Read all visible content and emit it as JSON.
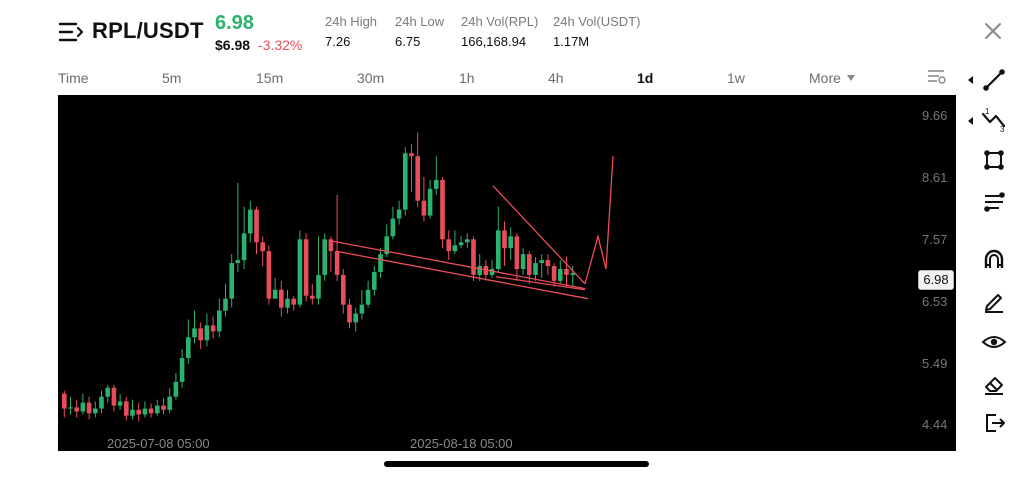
{
  "header": {
    "pair": "RPL/USDT",
    "price": "6.98",
    "price_usd": "$6.98",
    "change": "-3.32%",
    "stats": [
      {
        "label": "24h High",
        "value": "7.26"
      },
      {
        "label": "24h Low",
        "value": "6.75"
      },
      {
        "label": "24h Vol(RPL)",
        "value": "166,168.94"
      },
      {
        "label": "24h Vol(USDT)",
        "value": "1.17M"
      }
    ],
    "icons": {
      "menu": "menu-icon",
      "close": "close-icon"
    }
  },
  "timeframes": {
    "items": [
      "Time",
      "5m",
      "15m",
      "30m",
      "1h",
      "4h",
      "1d",
      "1w",
      "More"
    ],
    "active": "1d",
    "settings_icon": "indicator-settings-icon"
  },
  "chart_data": {
    "type": "candlestick",
    "symbol": "RPL/USDT",
    "interval": "1d",
    "current_price": 6.98,
    "yaxis_ticks": [
      "9.66",
      "8.61",
      "7.57",
      "6.53",
      "5.49",
      "4.44"
    ],
    "xaxis_ticks": [
      "2025-07-08 05:00",
      "2025-08-18 05:00"
    ],
    "candles": [
      [
        4.95,
        4.7,
        5.0,
        4.55
      ],
      [
        4.7,
        4.72,
        4.9,
        4.6
      ],
      [
        4.72,
        4.65,
        4.85,
        4.55
      ],
      [
        4.65,
        4.8,
        4.95,
        4.6
      ],
      [
        4.8,
        4.62,
        4.9,
        4.52
      ],
      [
        4.62,
        4.7,
        4.82,
        4.55
      ],
      [
        4.7,
        4.9,
        5.0,
        4.62
      ],
      [
        4.9,
        5.05,
        5.1,
        4.8
      ],
      [
        5.05,
        4.75,
        5.1,
        4.65
      ],
      [
        4.75,
        4.82,
        4.95,
        4.68
      ],
      [
        4.82,
        4.58,
        4.9,
        4.5
      ],
      [
        4.58,
        4.68,
        4.85,
        4.52
      ],
      [
        4.68,
        4.6,
        4.8,
        4.48
      ],
      [
        4.6,
        4.7,
        4.82,
        4.55
      ],
      [
        4.7,
        4.62,
        4.78,
        4.55
      ],
      [
        4.62,
        4.75,
        4.85,
        4.58
      ],
      [
        4.75,
        4.68,
        4.88,
        4.6
      ],
      [
        4.68,
        4.9,
        5.05,
        4.62
      ],
      [
        4.9,
        5.15,
        5.3,
        4.85
      ],
      [
        5.15,
        5.55,
        5.7,
        5.05
      ],
      [
        5.55,
        5.9,
        6.2,
        5.45
      ],
      [
        5.9,
        6.05,
        6.35,
        5.8
      ],
      [
        6.05,
        5.85,
        6.15,
        5.7
      ],
      [
        5.85,
        6.1,
        6.3,
        5.75
      ],
      [
        6.1,
        6.0,
        6.25,
        5.88
      ],
      [
        6.0,
        6.35,
        6.55,
        5.9
      ],
      [
        6.35,
        6.55,
        6.8,
        6.25
      ],
      [
        6.55,
        7.15,
        7.3,
        6.4
      ],
      [
        7.15,
        7.2,
        8.5,
        7.0
      ],
      [
        7.2,
        7.65,
        8.1,
        7.05
      ],
      [
        7.65,
        8.05,
        8.2,
        7.5
      ],
      [
        8.05,
        7.5,
        8.1,
        7.3
      ],
      [
        7.5,
        7.35,
        7.6,
        7.1
      ],
      [
        7.35,
        6.55,
        7.45,
        6.45
      ],
      [
        6.55,
        6.7,
        6.9,
        6.55
      ],
      [
        6.7,
        6.4,
        6.85,
        6.25
      ],
      [
        6.4,
        6.55,
        6.7,
        6.3
      ],
      [
        6.55,
        6.45,
        6.6,
        6.35
      ],
      [
        6.45,
        7.55,
        7.7,
        6.4
      ],
      [
        7.55,
        6.6,
        7.65,
        6.5
      ],
      [
        6.6,
        6.55,
        6.8,
        6.45
      ],
      [
        6.55,
        6.95,
        7.6,
        6.45
      ],
      [
        6.95,
        7.55,
        7.65,
        6.85
      ],
      [
        7.55,
        7.35,
        7.6,
        7.0
      ],
      [
        7.35,
        6.95,
        8.3,
        6.85
      ],
      [
        6.95,
        6.45,
        7.05,
        6.3
      ],
      [
        6.45,
        6.15,
        6.55,
        6.05
      ],
      [
        6.15,
        6.3,
        6.4,
        6.0
      ],
      [
        6.3,
        6.45,
        6.7,
        6.2
      ],
      [
        6.45,
        6.7,
        6.85,
        6.4
      ],
      [
        6.7,
        7.0,
        7.1,
        6.6
      ],
      [
        7.0,
        7.3,
        7.4,
        6.9
      ],
      [
        7.3,
        7.6,
        7.8,
        7.25
      ],
      [
        7.6,
        7.9,
        8.1,
        7.55
      ],
      [
        7.9,
        8.05,
        8.2,
        7.8
      ],
      [
        8.05,
        9.0,
        9.1,
        7.95
      ],
      [
        9.0,
        8.95,
        9.15,
        8.35
      ],
      [
        8.95,
        8.2,
        9.35,
        8.1
      ],
      [
        8.2,
        7.95,
        8.6,
        7.85
      ],
      [
        7.95,
        8.4,
        8.55,
        7.9
      ],
      [
        8.4,
        8.55,
        8.95,
        8.3
      ],
      [
        8.55,
        7.55,
        8.6,
        7.4
      ],
      [
        7.55,
        7.35,
        7.7,
        7.2
      ],
      [
        7.35,
        7.45,
        7.7,
        7.3
      ],
      [
        7.45,
        7.5,
        7.6,
        7.4
      ],
      [
        7.5,
        7.55,
        7.65,
        7.4
      ],
      [
        7.55,
        6.95,
        7.6,
        6.85
      ],
      [
        6.95,
        7.1,
        7.3,
        6.85
      ],
      [
        7.1,
        6.95,
        7.2,
        6.85
      ],
      [
        6.95,
        7.05,
        7.2,
        6.9
      ],
      [
        7.05,
        7.7,
        8.1,
        7.0
      ],
      [
        7.7,
        7.4,
        7.85,
        7.1
      ],
      [
        7.4,
        7.6,
        7.75,
        7.2
      ],
      [
        7.6,
        7.05,
        7.65,
        6.85
      ],
      [
        7.05,
        7.3,
        7.4,
        6.95
      ],
      [
        7.3,
        6.95,
        7.35,
        6.8
      ],
      [
        6.95,
        7.15,
        7.25,
        6.85
      ],
      [
        7.15,
        7.2,
        7.3,
        6.9
      ],
      [
        7.2,
        7.1,
        7.3,
        6.95
      ],
      [
        7.1,
        6.85,
        7.15,
        6.75
      ],
      [
        6.85,
        7.05,
        7.2,
        6.8
      ],
      [
        7.05,
        6.95,
        7.26,
        6.75
      ],
      [
        6.95,
        6.98,
        7.1,
        6.75
      ]
    ],
    "drawings": [
      {
        "type": "trend-line",
        "name": "upper-channel-line"
      },
      {
        "type": "trend-line",
        "name": "lower-channel-line"
      },
      {
        "type": "trend-line",
        "name": "triangle-upper-line"
      },
      {
        "type": "trend-line",
        "name": "triangle-lower-line"
      },
      {
        "type": "path",
        "name": "projection-path"
      }
    ],
    "colors": {
      "up": "#2bb26e",
      "down": "#ea4d5a",
      "drawing": "#ea4d5a",
      "background": "#000000"
    }
  },
  "chart_price_tag": "6.98",
  "toolbar": {
    "tools": [
      {
        "name": "trend-line-tool-icon"
      },
      {
        "name": "wave-tool-icon"
      },
      {
        "name": "rectangle-tool-icon"
      },
      {
        "name": "fibonacci-tool-icon"
      },
      {
        "name": "magnet-icon"
      },
      {
        "name": "pencil-icon"
      },
      {
        "name": "eye-icon"
      },
      {
        "name": "eraser-icon"
      },
      {
        "name": "exit-icon"
      }
    ]
  },
  "colors": {
    "up": "#2bb26e",
    "down": "#ea4d5a",
    "text_muted": "#7a7a7a"
  }
}
